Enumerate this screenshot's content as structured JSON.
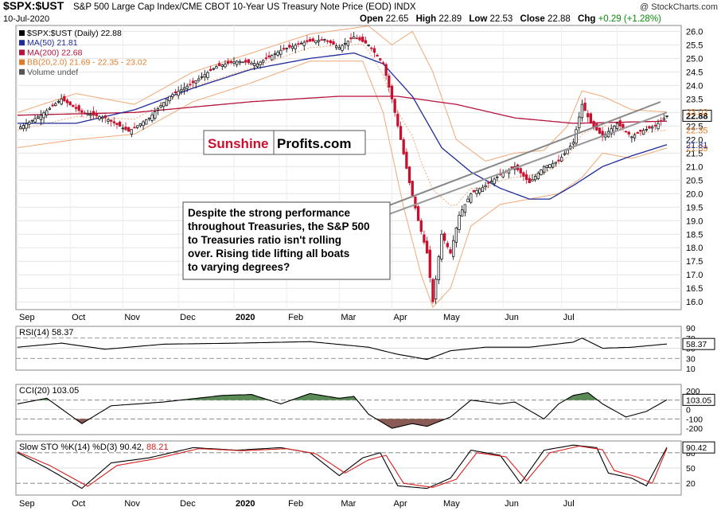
{
  "header": {
    "symbol": "$SPX:$UST",
    "description": "S&P 500 Large Cap Index/CME CBOT 10-Year US Treasury Note Price (EOD)",
    "exchange": "INDX",
    "copyright": "@ StockCharts.com",
    "date": "10-Jul-2020",
    "ohlc": {
      "open_label": "Open",
      "open": "22.65",
      "high_label": "High",
      "high": "22.89",
      "low_label": "Low",
      "low": "22.53",
      "close_label": "Close",
      "close": "22.88",
      "chg_label": "Chg",
      "chg": "+0.29 (+1.28%)",
      "chg_color": "#0a8a0a"
    }
  },
  "legend": [
    {
      "text": "$SPX:$UST (Daily) 22.88",
      "color": "#000000",
      "icon": "candle-icon"
    },
    {
      "text": "MA(50) 21.81",
      "color": "#1f2a9a",
      "icon": "line-icon"
    },
    {
      "text": "MA(200) 22.68",
      "color": "#b3123b",
      "icon": "line-icon"
    },
    {
      "text": "BB(20,2.0) 21.69 - 22.35 - 23.02",
      "color": "#e07b2a",
      "icon": "line-icon"
    },
    {
      "text": "Volume undef",
      "color": "#555555",
      "icon": "bar-icon"
    }
  ],
  "watermark": {
    "part1": "Sunshine",
    "part2": "Profits.com",
    "part1_color": "#c8102e"
  },
  "annotation": "Despite the strong performance throughout Treasuries, the S&P 500 to Treasuries ratio isn't rolling over. Rising tide lifting all boats to varying degrees?",
  "months": [
    "Sep",
    "Oct",
    "Nov",
    "Dec",
    "2020",
    "Feb",
    "Mar",
    "Apr",
    "May",
    "Jun",
    "Jul"
  ],
  "last_price_tags": {
    "close": "22.88",
    "bb_upper": "23.02",
    "bb_mid": "22.35",
    "bb_lower": "21.69",
    "ma50": "21.81",
    "rsi": "58.37",
    "cci": "103.05",
    "sto": "90.42"
  },
  "chart_data": [
    {
      "type": "candlestick",
      "y_ticks": [
        "26.0",
        "25.5",
        "25.0",
        "24.5",
        "24.0",
        "23.5",
        "23.0",
        "22.5",
        "22.0",
        "21.5",
        "21.0",
        "20.5",
        "20.0",
        "19.5",
        "19.0",
        "18.5",
        "18.0",
        "17.5",
        "17.0",
        "16.5",
        "16.0"
      ],
      "ylim": [
        15.8,
        26.1
      ],
      "x_categories": [
        "Sep",
        "Oct",
        "Nov",
        "Dec",
        "2020",
        "Feb",
        "Mar",
        "Apr",
        "May",
        "Jun",
        "Jul"
      ],
      "close_points": [
        [
          0,
          22.4
        ],
        [
          8,
          22.9
        ],
        [
          15,
          23.5
        ],
        [
          22,
          23.0
        ],
        [
          30,
          22.8
        ],
        [
          38,
          22.3
        ],
        [
          45,
          22.8
        ],
        [
          52,
          23.6
        ],
        [
          60,
          24.1
        ],
        [
          68,
          24.7
        ],
        [
          75,
          24.9
        ],
        [
          82,
          24.8
        ],
        [
          90,
          25.3
        ],
        [
          98,
          25.6
        ],
        [
          105,
          25.7
        ],
        [
          110,
          25.4
        ],
        [
          115,
          25.8
        ],
        [
          120,
          25.5
        ],
        [
          125,
          24.8
        ],
        [
          128,
          23.5
        ],
        [
          131,
          22.0
        ],
        [
          134,
          20.4
        ],
        [
          137,
          19.0
        ],
        [
          140,
          17.8
        ],
        [
          142,
          16.0
        ],
        [
          145,
          18.5
        ],
        [
          148,
          17.8
        ],
        [
          151,
          19.2
        ],
        [
          155,
          20.0
        ],
        [
          160,
          20.3
        ],
        [
          165,
          20.7
        ],
        [
          170,
          21.0
        ],
        [
          175,
          20.4
        ],
        [
          180,
          21.0
        ],
        [
          185,
          21.2
        ],
        [
          190,
          21.9
        ],
        [
          193,
          23.3
        ],
        [
          196,
          22.6
        ],
        [
          200,
          22.1
        ],
        [
          205,
          22.6
        ],
        [
          210,
          22.1
        ],
        [
          213,
          22.3
        ],
        [
          218,
          22.5
        ],
        [
          222,
          22.88
        ]
      ],
      "ma50_points": [
        [
          0,
          22.6
        ],
        [
          20,
          22.6
        ],
        [
          40,
          23.1
        ],
        [
          60,
          23.9
        ],
        [
          80,
          24.6
        ],
        [
          100,
          25.0
        ],
        [
          115,
          25.2
        ],
        [
          125,
          24.8
        ],
        [
          135,
          23.6
        ],
        [
          145,
          21.7
        ],
        [
          155,
          20.8
        ],
        [
          165,
          20.2
        ],
        [
          175,
          19.8
        ],
        [
          182,
          19.8
        ],
        [
          190,
          20.3
        ],
        [
          200,
          21.0
        ],
        [
          210,
          21.4
        ],
        [
          222,
          21.81
        ]
      ],
      "ma200_points": [
        [
          0,
          22.9
        ],
        [
          40,
          23.0
        ],
        [
          80,
          23.4
        ],
        [
          110,
          23.6
        ],
        [
          130,
          23.6
        ],
        [
          150,
          23.3
        ],
        [
          170,
          22.8
        ],
        [
          190,
          22.6
        ],
        [
          222,
          22.68
        ]
      ],
      "bb_upper_points": [
        [
          0,
          23.0
        ],
        [
          20,
          23.7
        ],
        [
          40,
          23.3
        ],
        [
          60,
          24.5
        ],
        [
          80,
          25.2
        ],
        [
          100,
          25.9
        ],
        [
          120,
          26.2
        ],
        [
          128,
          25.5
        ],
        [
          135,
          26.0
        ],
        [
          142,
          24.5
        ],
        [
          150,
          22.0
        ],
        [
          160,
          21.2
        ],
        [
          170,
          21.5
        ],
        [
          180,
          21.6
        ],
        [
          188,
          22.5
        ],
        [
          193,
          23.8
        ],
        [
          200,
          23.6
        ],
        [
          210,
          23.1
        ],
        [
          222,
          23.02
        ]
      ],
      "bb_lower_points": [
        [
          0,
          21.7
        ],
        [
          20,
          22.0
        ],
        [
          40,
          22.2
        ],
        [
          60,
          23.4
        ],
        [
          80,
          24.1
        ],
        [
          100,
          24.9
        ],
        [
          118,
          24.9
        ],
        [
          125,
          23.0
        ],
        [
          132,
          19.5
        ],
        [
          138,
          17.0
        ],
        [
          142,
          15.8
        ],
        [
          148,
          16.5
        ],
        [
          155,
          18.8
        ],
        [
          165,
          19.6
        ],
        [
          175,
          19.8
        ],
        [
          185,
          20.0
        ],
        [
          193,
          20.6
        ],
        [
          200,
          21.5
        ],
        [
          210,
          21.3
        ],
        [
          222,
          21.69
        ]
      ],
      "trendline": [
        [
          126,
          19.2
        ],
        [
          222,
          23.0
        ]
      ]
    },
    {
      "type": "line",
      "title": "RSI(14) 58.37",
      "y_ticks": [
        "90",
        "70",
        "50",
        "30",
        "10"
      ],
      "ylim": [
        10,
        90
      ],
      "levels": [
        70,
        30
      ],
      "points": [
        [
          0,
          52
        ],
        [
          15,
          60
        ],
        [
          30,
          48
        ],
        [
          50,
          58
        ],
        [
          75,
          60
        ],
        [
          100,
          63
        ],
        [
          120,
          52
        ],
        [
          130,
          38
        ],
        [
          140,
          28
        ],
        [
          148,
          45
        ],
        [
          160,
          52
        ],
        [
          175,
          52
        ],
        [
          190,
          62
        ],
        [
          193,
          70
        ],
        [
          200,
          50
        ],
        [
          210,
          52
        ],
        [
          222,
          58.37
        ]
      ]
    },
    {
      "type": "line",
      "title": "CCI(20) 103.05",
      "y_ticks": [
        "200",
        "100",
        "0",
        "-100",
        "-200"
      ],
      "ylim": [
        -250,
        250
      ],
      "levels": [
        100,
        -100
      ],
      "points": [
        [
          0,
          60
        ],
        [
          10,
          120
        ],
        [
          22,
          -150
        ],
        [
          32,
          40
        ],
        [
          50,
          80
        ],
        [
          70,
          150
        ],
        [
          80,
          160
        ],
        [
          90,
          60
        ],
        [
          100,
          170
        ],
        [
          110,
          120
        ],
        [
          115,
          140
        ],
        [
          120,
          -50
        ],
        [
          128,
          -200
        ],
        [
          135,
          -150
        ],
        [
          140,
          -180
        ],
        [
          148,
          -80
        ],
        [
          155,
          100
        ],
        [
          165,
          60
        ],
        [
          170,
          80
        ],
        [
          180,
          -100
        ],
        [
          185,
          60
        ],
        [
          190,
          150
        ],
        [
          195,
          180
        ],
        [
          200,
          60
        ],
        [
          208,
          -80
        ],
        [
          215,
          -20
        ],
        [
          222,
          103.05
        ]
      ]
    },
    {
      "type": "line",
      "title": "Slow STO %K(14) %D(3) 90.42, 88.21",
      "y_ticks": [
        "80",
        "50",
        "20"
      ],
      "ylim": [
        0,
        100
      ],
      "levels": [
        80,
        20
      ],
      "series": [
        {
          "name": "%K(14)",
          "values_label": "90.42",
          "color": "#000000",
          "points": [
            [
              0,
              80
            ],
            [
              10,
              50
            ],
            [
              22,
              10
            ],
            [
              32,
              60
            ],
            [
              45,
              70
            ],
            [
              60,
              90
            ],
            [
              75,
              85
            ],
            [
              90,
              90
            ],
            [
              100,
              80
            ],
            [
              110,
              35
            ],
            [
              118,
              70
            ],
            [
              124,
              80
            ],
            [
              130,
              15
            ],
            [
              140,
              10
            ],
            [
              148,
              30
            ],
            [
              155,
              85
            ],
            [
              165,
              75
            ],
            [
              172,
              20
            ],
            [
              180,
              85
            ],
            [
              190,
              95
            ],
            [
              198,
              90
            ],
            [
              202,
              40
            ],
            [
              210,
              30
            ],
            [
              215,
              15
            ],
            [
              222,
              90.42
            ]
          ]
        },
        {
          "name": "%D(3)",
          "values_label": "88.21",
          "color": "#d62020",
          "points": [
            [
              0,
              82
            ],
            [
              11,
              55
            ],
            [
              24,
              14
            ],
            [
              34,
              55
            ],
            [
              47,
              68
            ],
            [
              62,
              88
            ],
            [
              77,
              84
            ],
            [
              92,
              88
            ],
            [
              102,
              78
            ],
            [
              112,
              40
            ],
            [
              120,
              66
            ],
            [
              126,
              75
            ],
            [
              132,
              20
            ],
            [
              142,
              12
            ],
            [
              150,
              28
            ],
            [
              157,
              80
            ],
            [
              167,
              72
            ],
            [
              174,
              25
            ],
            [
              182,
              80
            ],
            [
              192,
              93
            ],
            [
              200,
              86
            ],
            [
              204,
              45
            ],
            [
              212,
              32
            ],
            [
              217,
              20
            ],
            [
              222,
              88.21
            ]
          ]
        }
      ]
    }
  ]
}
